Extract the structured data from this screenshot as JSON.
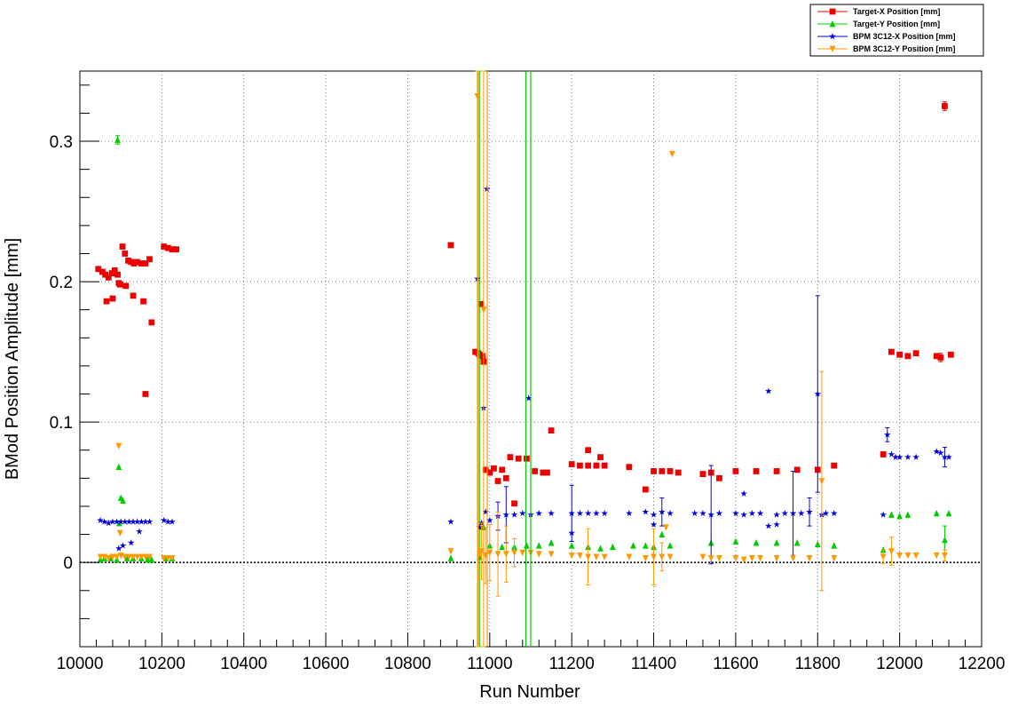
{
  "chart_data": {
    "type": "scatter",
    "title": "",
    "xlabel": "Run Number",
    "ylabel": "BMod Position Amplitude [mm]",
    "xlim": [
      10000,
      12200
    ],
    "ylim": [
      -0.06,
      0.35
    ],
    "x_ticks": [
      10000,
      10200,
      10400,
      10600,
      10800,
      11000,
      11200,
      11400,
      11600,
      11800,
      12000,
      12200
    ],
    "x_tick_labels": [
      "10000",
      "10200",
      "10400",
      "10600",
      "10800",
      "11000",
      "11200",
      "11400",
      "11600",
      "11800",
      "12000",
      "12200"
    ],
    "y_ticks": [
      0,
      0.1,
      0.2,
      0.3
    ],
    "y_tick_labels": [
      "0",
      "0.1",
      "0.2",
      "0.3"
    ],
    "grid": true,
    "zero_line": true,
    "legend_position": "top-right",
    "series": [
      {
        "name": "Target-X Position [mm]",
        "color": "#ee0000",
        "marker": "square",
        "x": [
          10045,
          10055,
          10062,
          10070,
          10078,
          10085,
          10092,
          10098,
          10104,
          10110,
          10118,
          10125,
          10132,
          10140,
          10150,
          10160,
          10170,
          10205,
          10215,
          10225,
          10235,
          10065,
          10080,
          10095,
          10112,
          10130,
          10155,
          10175,
          10160,
          10905,
          10965,
          10972,
          10975,
          10979,
          10982,
          10985,
          10990,
          11010,
          11030,
          11050,
          11070,
          11090,
          11110,
          11130,
          11150,
          11040,
          11200,
          11220,
          11240,
          11260,
          11280,
          11340,
          11400,
          11420,
          11440,
          11460,
          11520,
          11540,
          11560,
          11600,
          11650,
          11700,
          11750,
          11800,
          11840,
          11960,
          11980,
          12000,
          12020,
          12040,
          12090,
          12100,
          12110,
          12125,
          11000,
          11020,
          11060,
          11140,
          11240,
          11270,
          11380
        ],
        "y": [
          0.209,
          0.207,
          0.205,
          0.203,
          0.206,
          0.208,
          0.205,
          0.198,
          0.225,
          0.22,
          0.215,
          0.214,
          0.213,
          0.214,
          0.213,
          0.213,
          0.216,
          0.225,
          0.224,
          0.223,
          0.223,
          0.186,
          0.188,
          0.199,
          0.197,
          0.19,
          0.186,
          0.171,
          0.12,
          0.226,
          0.15,
          0.149,
          0.148,
          0.184,
          0.147,
          0.143,
          0.066,
          0.067,
          0.066,
          0.075,
          0.074,
          0.074,
          0.065,
          0.064,
          0.094,
          0.06,
          0.07,
          0.069,
          0.069,
          0.069,
          0.069,
          0.068,
          0.065,
          0.065,
          0.065,
          0.064,
          0.063,
          0.064,
          0.06,
          0.065,
          0.065,
          0.065,
          0.066,
          0.066,
          0.069,
          0.077,
          0.15,
          0.148,
          0.147,
          0.149,
          0.147,
          0.146,
          0.325,
          0.148,
          0.064,
          0.058,
          0.042,
          0.064,
          0.08,
          0.075,
          0.052
        ],
        "err": [
          0,
          0,
          0,
          0,
          0,
          0,
          0,
          0,
          0,
          0,
          0,
          0,
          0,
          0,
          0,
          0,
          0,
          0,
          0,
          0,
          0,
          0,
          0,
          0,
          0,
          0,
          0,
          0,
          0,
          0,
          0,
          0,
          0,
          0,
          0,
          0,
          0,
          0,
          0,
          0,
          0,
          0,
          0,
          0,
          0,
          0,
          0,
          0,
          0,
          0,
          0,
          0,
          0,
          0,
          0,
          0,
          0,
          0,
          0,
          0,
          0,
          0,
          0,
          0,
          0,
          0,
          0,
          0,
          0,
          0,
          0,
          0.003,
          0.003,
          0,
          0,
          0,
          0,
          0,
          0,
          0,
          0
        ]
      },
      {
        "name": "Target-Y Position [mm]",
        "color": "#00cc00",
        "marker": "triangle-up",
        "x": [
          10050,
          10060,
          10075,
          10090,
          10095,
          10100,
          10105,
          10115,
          10130,
          10150,
          10165,
          10175,
          10210,
          10225,
          10092,
          10096,
          10905,
          10975,
          10985,
          11000,
          11030,
          11060,
          11090,
          11120,
          11150,
          11200,
          11240,
          11270,
          11300,
          11350,
          11400,
          11420,
          11440,
          11540,
          11600,
          11650,
          11700,
          11750,
          11800,
          11840,
          11960,
          11980,
          12000,
          12020,
          12090,
          12110,
          12120,
          11380
        ],
        "y": [
          0.002,
          0.003,
          0.003,
          0.002,
          0.068,
          0.046,
          0.044,
          0.003,
          0.003,
          0.003,
          0.002,
          0.002,
          0.003,
          0.003,
          0.301,
          0.028,
          0.003,
          0.004,
          0.025,
          0.012,
          0.011,
          0.011,
          0.012,
          0.012,
          0.014,
          0.012,
          0.011,
          0.01,
          0.011,
          0.012,
          0.011,
          0.02,
          0.012,
          0.014,
          0.015,
          0.014,
          0.014,
          0.014,
          0.013,
          0.012,
          0.009,
          0.034,
          0.033,
          0.034,
          0.035,
          0.016,
          0.035,
          0.012
        ],
        "err": [
          0,
          0,
          0,
          0,
          0,
          0,
          0,
          0,
          0,
          0,
          0,
          0,
          0,
          0,
          0.003,
          0,
          0,
          0.35,
          0,
          0,
          0,
          0,
          0,
          0,
          0,
          0,
          0,
          0,
          0,
          0,
          0,
          0,
          0,
          0,
          0,
          0,
          0,
          0,
          0,
          0,
          0,
          0,
          0,
          0,
          0,
          0.01,
          0,
          0
        ]
      },
      {
        "name": "BPM 3C12-X Position [mm]",
        "color": "#0000dd",
        "marker": "star",
        "x": [
          10050,
          10060,
          10070,
          10080,
          10090,
          10100,
          10110,
          10120,
          10130,
          10140,
          10150,
          10160,
          10170,
          10205,
          10215,
          10225,
          10095,
          10105,
          10125,
          10145,
          10905,
          10970,
          10975,
          10980,
          10985,
          10990,
          11000,
          11020,
          11040,
          11060,
          11080,
          11100,
          11120,
          11150,
          11200,
          11220,
          11240,
          11260,
          11280,
          11340,
          11380,
          11400,
          11420,
          11440,
          11520,
          11540,
          11560,
          11600,
          11620,
          11640,
          11660,
          11680,
          11700,
          11720,
          11740,
          11760,
          11780,
          11800,
          11820,
          11840,
          11680,
          11810,
          11960,
          11970,
          11980,
          11990,
          12000,
          12020,
          12040,
          12090,
          12100,
          12110,
          12120,
          10993,
          11095,
          11200,
          11400,
          11500,
          11620,
          11700
        ],
        "y": [
          0.03,
          0.029,
          0.028,
          0.029,
          0.029,
          0.029,
          0.029,
          0.029,
          0.029,
          0.029,
          0.029,
          0.029,
          0.029,
          0.03,
          0.029,
          0.029,
          0.01,
          0.012,
          0.014,
          0.022,
          0.029,
          0.202,
          0.025,
          0.028,
          0.11,
          0.036,
          0.03,
          0.033,
          0.034,
          0.034,
          0.035,
          0.034,
          0.035,
          0.035,
          0.035,
          0.035,
          0.035,
          0.035,
          0.035,
          0.035,
          0.036,
          0.034,
          0.036,
          0.035,
          0.035,
          0.034,
          0.035,
          0.035,
          0.034,
          0.035,
          0.035,
          0.122,
          0.034,
          0.035,
          0.035,
          0.035,
          0.036,
          0.12,
          0.035,
          0.035,
          0.026,
          0.034,
          0.034,
          0.091,
          0.077,
          0.075,
          0.075,
          0.075,
          0.075,
          0.079,
          0.078,
          0.075,
          0.075,
          0.266,
          0.117,
          0.021,
          0.027,
          0.035,
          0.049,
          0.027
        ],
        "err": [
          0,
          0,
          0,
          0,
          0,
          0,
          0,
          0,
          0,
          0,
          0,
          0,
          0,
          0,
          0,
          0,
          0,
          0,
          0,
          0,
          0,
          0,
          0,
          0,
          0,
          0,
          0,
          0.01,
          0.02,
          0,
          0,
          0,
          0,
          0,
          0.02,
          0,
          0,
          0,
          0,
          0,
          0,
          0,
          0.01,
          0,
          0,
          0.035,
          0,
          0,
          0,
          0,
          0,
          0,
          0,
          0,
          0.03,
          0,
          0.01,
          0.07,
          0,
          0,
          0,
          0,
          0,
          0.005,
          0,
          0,
          0,
          0,
          0,
          0,
          0,
          0.007,
          0,
          0,
          0,
          0,
          0,
          0,
          0,
          0
        ]
      },
      {
        "name": "BPM 3C12-Y Position [mm]",
        "color": "#ff9900",
        "marker": "triangle-down",
        "x": [
          10050,
          10060,
          10070,
          10080,
          10090,
          10100,
          10110,
          10120,
          10130,
          10140,
          10150,
          10160,
          10170,
          10205,
          10215,
          10225,
          10095,
          10098,
          10905,
          10970,
          10975,
          10980,
          10985,
          10990,
          11000,
          11020,
          11040,
          11060,
          11080,
          11100,
          11120,
          11150,
          11200,
          11220,
          11240,
          11260,
          11280,
          11340,
          11380,
          11400,
          11420,
          11440,
          11520,
          11540,
          11560,
          11600,
          11620,
          11640,
          11660,
          11700,
          11740,
          11780,
          11810,
          11840,
          11960,
          11980,
          12000,
          12020,
          12040,
          12090,
          12110,
          11445,
          11430
        ],
        "y": [
          0.004,
          0.004,
          0.003,
          0.004,
          0.004,
          0.005,
          0.004,
          0.004,
          0.004,
          0.004,
          0.004,
          0.004,
          0.004,
          0.003,
          0.003,
          0.003,
          0.083,
          0.021,
          0.008,
          0.332,
          0.006,
          0.008,
          0.18,
          0.005,
          0.007,
          0.006,
          0.006,
          0.007,
          0.007,
          0.007,
          0.006,
          0.006,
          0.005,
          0.005,
          0.004,
          0.004,
          0.004,
          0.004,
          0.003,
          0.004,
          0.004,
          0.004,
          0.004,
          0.003,
          0.003,
          0.003,
          0.002,
          0.003,
          0.003,
          0.003,
          0.003,
          0.003,
          0.058,
          0.003,
          0.004,
          0.008,
          0.005,
          0.005,
          0.005,
          0.005,
          0.005,
          0.291,
          0.025
        ],
        "err": [
          0,
          0,
          0,
          0,
          0,
          0,
          0,
          0,
          0,
          0,
          0,
          0,
          0,
          0,
          0,
          0,
          0,
          0,
          0,
          0.4,
          0,
          0.02,
          0.35,
          0.02,
          0.02,
          0.03,
          0.02,
          0.01,
          0,
          0,
          0,
          0,
          0,
          0,
          0.02,
          0,
          0,
          0,
          0,
          0.02,
          0.01,
          0,
          0,
          0,
          0,
          0,
          0,
          0,
          0,
          0,
          0,
          0,
          0.078,
          0,
          0.005,
          0.01,
          0,
          0,
          0,
          0,
          0.004,
          0,
          0
        ]
      }
    ]
  }
}
